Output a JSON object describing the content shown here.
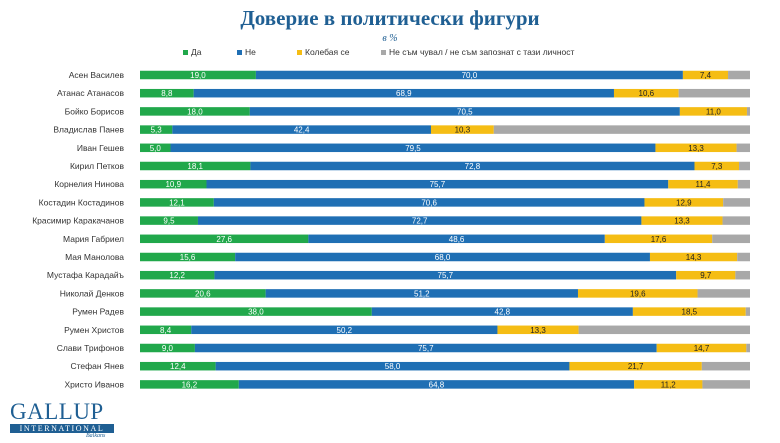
{
  "chart_data": {
    "type": "bar",
    "stacked": true,
    "orientation": "horizontal",
    "title": "Доверие в политически фигури",
    "subtitle": "в %",
    "legend_position": "top",
    "categories": [
      "Асен Василев",
      "Атанас Атанасов",
      "Бойко Борисов",
      "Владислав Панев",
      "Иван Гешев",
      "Кирил Петков",
      "Корнелия Нинова",
      "Костадин Костадинов",
      "Красимир Каракачанов",
      "Мария Габриел",
      "Мая Манолова",
      "Мустафа Карадайъ",
      "Николай Денков",
      "Румен Радев",
      "Румен Христов",
      "Слави Трифонов",
      "Стефан Янев",
      "Христо Иванов"
    ],
    "series": [
      {
        "name": "Да",
        "color": "#21a84b",
        "values": [
          19.0,
          8.8,
          18.0,
          5.3,
          5.0,
          18.1,
          10.9,
          12.1,
          9.5,
          27.6,
          15.6,
          12.2,
          20.6,
          38.0,
          8.4,
          9.0,
          12.4,
          16.2
        ]
      },
      {
        "name": "Не",
        "color": "#1f6fb4",
        "values": [
          70.0,
          68.9,
          70.5,
          42.4,
          79.5,
          72.8,
          75.7,
          70.6,
          72.7,
          48.6,
          68.0,
          75.7,
          51.2,
          42.8,
          50.2,
          75.7,
          58.0,
          64.8
        ]
      },
      {
        "name": "Колебая се",
        "color": "#f5bd14",
        "values": [
          7.4,
          10.6,
          11.0,
          10.3,
          13.3,
          7.3,
          11.4,
          12.9,
          13.3,
          17.6,
          14.3,
          9.7,
          19.6,
          18.5,
          13.3,
          14.7,
          21.7,
          11.2
        ]
      },
      {
        "name": "Не съм чувал / не съм запознат с тази личност",
        "color": "#a8a8a8",
        "values": [
          3.6,
          11.7,
          0.5,
          42.0,
          2.2,
          1.8,
          2.0,
          4.4,
          4.5,
          6.2,
          2.1,
          2.4,
          8.6,
          0.7,
          28.1,
          0.6,
          7.9,
          7.8
        ]
      }
    ],
    "xlim": [
      0,
      100
    ],
    "label_series": [
      "Да",
      "Не",
      "Колебая се"
    ],
    "grid": false
  },
  "logo": {
    "main": "GALLUP",
    "band": "INTERNATIONAL",
    "sub": "Balkans"
  }
}
